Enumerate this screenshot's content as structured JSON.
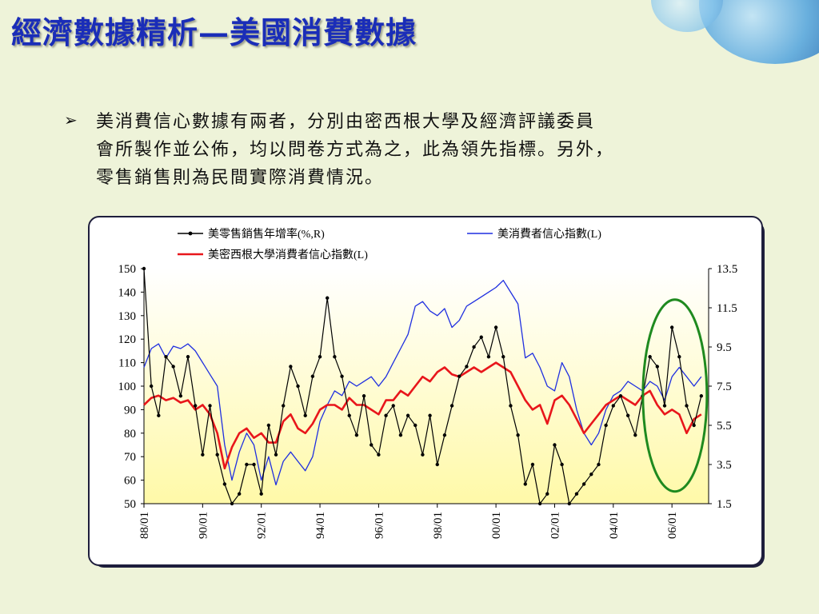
{
  "title": "經濟數據精析—美國消費數據",
  "bullet": {
    "icon": "arrow-bullet-icon",
    "lines": [
      "美消費信心數據有兩者，分別由密西根大學及經濟評議委員",
      "會所製作並公佈，均以問卷方式為之，此為領先指標。另外，",
      "零售銷售則為民間實際消費情況。"
    ]
  },
  "colors": {
    "title": "#1a2db8",
    "retail": "#000000",
    "conference": "#1f2fe0",
    "michigan": "#e8161b",
    "highlight_ellipse": "#1f8a1f",
    "plot_bg_top": "#ffffff",
    "plot_bg_bottom": "#fff9a8"
  },
  "chart_data": {
    "type": "line",
    "legend": [
      {
        "key": "retail",
        "label": "美零售銷售年增率(%,R)"
      },
      {
        "key": "conference",
        "label": "美消費者信心指數(L)"
      },
      {
        "key": "michigan",
        "label": "美密西根大學消費者信心指數(L)"
      }
    ],
    "x_tick_labels": [
      "88/01",
      "90/01",
      "92/01",
      "94/01",
      "96/01",
      "98/01",
      "00/01",
      "02/01",
      "04/01",
      "06/01"
    ],
    "x_range": [
      1988.0,
      2007.25
    ],
    "y_left_ticks": [
      "150",
      "140",
      "130",
      "120",
      "110",
      "100",
      "90",
      "80",
      "70",
      "60",
      "50"
    ],
    "ylim_left": [
      50,
      150
    ],
    "y_right_ticks": [
      "13.5",
      "11.5",
      "9.5",
      "7.5",
      "5.5",
      "3.5",
      "1.5"
    ],
    "ylim_right": [
      1.5,
      13.5
    ],
    "series": [
      {
        "name": "美消費者信心指數(L)",
        "key": "conference",
        "axis": "left",
        "x": [
          1988.0,
          1988.25,
          1988.5,
          1988.75,
          1989.0,
          1989.25,
          1989.5,
          1989.75,
          1990.0,
          1990.25,
          1990.5,
          1990.75,
          1991.0,
          1991.25,
          1991.5,
          1991.75,
          1992.0,
          1992.25,
          1992.5,
          1992.75,
          1993.0,
          1993.25,
          1993.5,
          1993.75,
          1994.0,
          1994.25,
          1994.5,
          1994.75,
          1995.0,
          1995.25,
          1995.5,
          1995.75,
          1996.0,
          1996.25,
          1996.5,
          1996.75,
          1997.0,
          1997.25,
          1997.5,
          1997.75,
          1998.0,
          1998.25,
          1998.5,
          1998.75,
          1999.0,
          1999.25,
          1999.5,
          1999.75,
          2000.0,
          2000.25,
          2000.5,
          2000.75,
          2001.0,
          2001.25,
          2001.5,
          2001.75,
          2002.0,
          2002.25,
          2002.5,
          2002.75,
          2003.0,
          2003.25,
          2003.5,
          2003.75,
          2004.0,
          2004.25,
          2004.5,
          2004.75,
          2005.0,
          2005.25,
          2005.5,
          2005.75,
          2006.0,
          2006.25,
          2006.5,
          2006.75,
          2007.0
        ],
        "values": [
          108,
          116,
          118,
          112,
          117,
          116,
          118,
          115,
          110,
          105,
          100,
          75,
          60,
          72,
          80,
          75,
          60,
          70,
          58,
          68,
          72,
          68,
          64,
          70,
          85,
          92,
          98,
          96,
          102,
          100,
          102,
          104,
          100,
          104,
          110,
          116,
          122,
          134,
          136,
          132,
          130,
          133,
          125,
          128,
          134,
          136,
          138,
          140,
          142,
          145,
          140,
          135,
          112,
          114,
          108,
          100,
          98,
          110,
          104,
          90,
          80,
          75,
          80,
          90,
          96,
          98,
          102,
          100,
          98,
          102,
          100,
          94,
          104,
          108,
          104,
          100,
          104
        ]
      },
      {
        "name": "美密西根大學消費者信心指數(L)",
        "key": "michigan",
        "axis": "left",
        "x": [
          1988.0,
          1988.25,
          1988.5,
          1988.75,
          1989.0,
          1989.25,
          1989.5,
          1989.75,
          1990.0,
          1990.25,
          1990.5,
          1990.75,
          1991.0,
          1991.25,
          1991.5,
          1991.75,
          1992.0,
          1992.25,
          1992.5,
          1992.75,
          1993.0,
          1993.25,
          1993.5,
          1993.75,
          1994.0,
          1994.25,
          1994.5,
          1994.75,
          1995.0,
          1995.25,
          1995.5,
          1995.75,
          1996.0,
          1996.25,
          1996.5,
          1996.75,
          1997.0,
          1997.25,
          1997.5,
          1997.75,
          1998.0,
          1998.25,
          1998.5,
          1998.75,
          1999.0,
          1999.25,
          1999.5,
          1999.75,
          2000.0,
          2000.25,
          2000.5,
          2000.75,
          2001.0,
          2001.25,
          2001.5,
          2001.75,
          2002.0,
          2002.25,
          2002.5,
          2002.75,
          2003.0,
          2003.25,
          2003.5,
          2003.75,
          2004.0,
          2004.25,
          2004.5,
          2004.75,
          2005.0,
          2005.25,
          2005.5,
          2005.75,
          2006.0,
          2006.25,
          2006.5,
          2006.75,
          2007.0
        ],
        "values": [
          92,
          95,
          96,
          94,
          95,
          93,
          94,
          90,
          92,
          88,
          80,
          65,
          74,
          80,
          82,
          78,
          80,
          76,
          76,
          85,
          88,
          82,
          80,
          84,
          90,
          92,
          92,
          90,
          95,
          92,
          92,
          90,
          88,
          94,
          94,
          98,
          96,
          100,
          104,
          102,
          106,
          108,
          105,
          104,
          106,
          108,
          106,
          108,
          110,
          108,
          106,
          100,
          94,
          90,
          92,
          84,
          94,
          96,
          92,
          86,
          80,
          84,
          88,
          92,
          94,
          96,
          94,
          92,
          96,
          98,
          92,
          88,
          90,
          88,
          80,
          86,
          88
        ]
      },
      {
        "name": "美零售銷售年增率(%,R)",
        "key": "retail",
        "axis": "right",
        "x": [
          1988.0,
          1988.25,
          1988.5,
          1988.75,
          1989.0,
          1989.25,
          1989.5,
          1989.75,
          1990.0,
          1990.25,
          1990.5,
          1990.75,
          1991.0,
          1991.25,
          1991.5,
          1991.75,
          1992.0,
          1992.25,
          1992.5,
          1992.75,
          1993.0,
          1993.25,
          1993.5,
          1993.75,
          1994.0,
          1994.25,
          1994.5,
          1994.75,
          1995.0,
          1995.25,
          1995.5,
          1995.75,
          1996.0,
          1996.25,
          1996.5,
          1996.75,
          1997.0,
          1997.25,
          1997.5,
          1997.75,
          1998.0,
          1998.25,
          1998.5,
          1998.75,
          1999.0,
          1999.25,
          1999.5,
          1999.75,
          2000.0,
          2000.25,
          2000.5,
          2000.75,
          2001.0,
          2001.25,
          2001.5,
          2001.75,
          2002.0,
          2002.25,
          2002.5,
          2002.75,
          2003.0,
          2003.25,
          2003.5,
          2003.75,
          2004.0,
          2004.25,
          2004.5,
          2004.75,
          2005.0,
          2005.25,
          2005.5,
          2005.75,
          2006.0,
          2006.25,
          2006.5,
          2006.75,
          2007.0
        ],
        "values": [
          13.5,
          7.5,
          6.0,
          9.0,
          8.5,
          7.0,
          9.0,
          6.5,
          4.0,
          6.5,
          4.0,
          2.5,
          1.5,
          2.0,
          3.5,
          3.5,
          2.0,
          5.5,
          4.0,
          6.5,
          8.5,
          7.5,
          6.0,
          8.0,
          9.0,
          12.0,
          9.0,
          8.0,
          6.0,
          5.0,
          7.0,
          4.5,
          4.0,
          6.0,
          6.5,
          5.0,
          6.0,
          5.5,
          4.0,
          6.0,
          3.5,
          5.0,
          6.5,
          8.0,
          8.5,
          9.5,
          10.0,
          9.0,
          10.5,
          9.0,
          6.5,
          5.0,
          2.5,
          3.5,
          1.5,
          2.0,
          4.5,
          3.5,
          1.5,
          2.0,
          2.5,
          3.0,
          3.5,
          5.5,
          6.5,
          7.0,
          6.0,
          5.0,
          7.0,
          9.0,
          8.5,
          6.5,
          10.5,
          9.0,
          6.5,
          5.5,
          7.0
        ]
      }
    ],
    "highlight": {
      "shape": "ellipse",
      "x_center": 2006.1,
      "y_center_left": 96
    }
  }
}
